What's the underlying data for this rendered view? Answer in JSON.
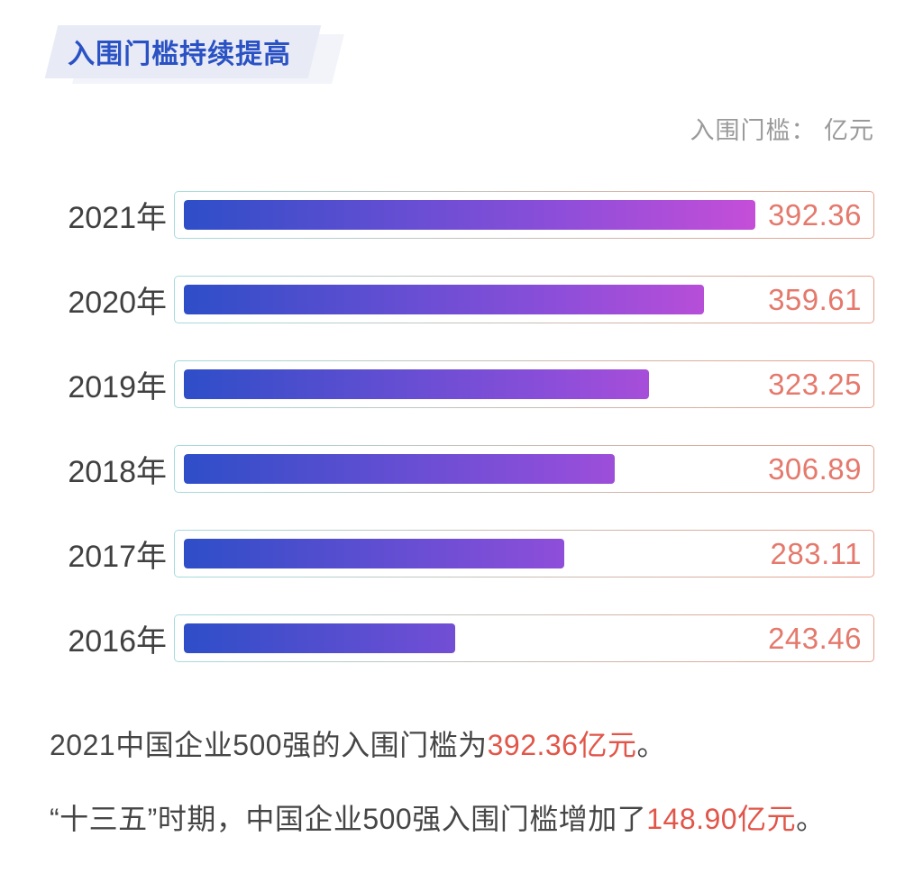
{
  "header": {
    "title": "入围门槛持续提高"
  },
  "legend": {
    "text": "入围门槛： 亿元"
  },
  "chart_data": {
    "type": "bar",
    "orientation": "horizontal",
    "title": "入围门槛持续提高",
    "value_unit_label": "入围门槛：亿元",
    "categories": [
      "2021年",
      "2020年",
      "2019年",
      "2018年",
      "2017年",
      "2016年"
    ],
    "values": [
      392.36,
      359.61,
      323.25,
      306.89,
      283.11,
      243.46
    ],
    "bar_width_percents": [
      81.8,
      74.5,
      66.6,
      61.7,
      54.4,
      38.9
    ],
    "xlim": [
      0,
      480
    ],
    "grid": false,
    "legend_position": "top-right",
    "value_labels_inside_track": true
  },
  "footnotes": [
    {
      "prefix": "2021中国企业500强的入围门槛为",
      "highlight": "392.36亿元",
      "suffix": "。"
    },
    {
      "prefix": "“十三五”时期，中国企业500强入围门槛增加了",
      "highlight": "148.90亿元",
      "suffix": "。"
    }
  ],
  "colors": {
    "title_blue": "#2a52c4",
    "title_bg": "#e8ebf6",
    "title_bg_back": "#f2f4fa",
    "bar_gradient_start": "#2e4ec8",
    "bar_gradient_mid": "#8a4ed9",
    "bar_gradient_end": "#e94ed8",
    "track_border_start": "#a6dbdf",
    "track_border_end": "#eb9f8b",
    "value_label": "#e4796c",
    "year_label": "#404040",
    "legend_text": "#9a9a9a",
    "body_text": "#464646",
    "highlight_red": "#e25549"
  }
}
